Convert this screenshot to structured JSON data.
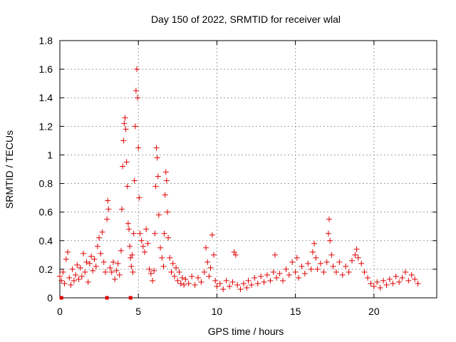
{
  "chart_data": {
    "type": "scatter",
    "title": "Day 150 of 2022, SRMTID for receiver wlal",
    "xlabel": "GPS time / hours",
    "ylabel": "SRMTID / TECUs",
    "xlim": [
      0,
      24
    ],
    "ylim": [
      0,
      1.8
    ],
    "xticks": [
      0,
      5,
      10,
      15,
      20
    ],
    "xtick_labels": [
      "0",
      "5",
      "10",
      "15",
      "20"
    ],
    "yticks": [
      0,
      0.2,
      0.4,
      0.6,
      0.8,
      1,
      1.2,
      1.4,
      1.6,
      1.8
    ],
    "ytick_labels": [
      "0",
      "0.2",
      "0.4",
      "0.6",
      "0.8",
      "1",
      "1.2",
      "1.4",
      "1.6",
      "1.8"
    ],
    "grid": true,
    "marker": "+",
    "color": "#e00000",
    "series": [
      {
        "name": "SRMTID",
        "points": [
          [
            0.0,
            0.15
          ],
          [
            0.1,
            0.12
          ],
          [
            0.2,
            0.18
          ],
          [
            0.3,
            0.1
          ],
          [
            0.4,
            0.27
          ],
          [
            0.5,
            0.32
          ],
          [
            0.6,
            0.14
          ],
          [
            0.7,
            0.09
          ],
          [
            0.8,
            0.2
          ],
          [
            0.9,
            0.12
          ],
          [
            1.0,
            0.16
          ],
          [
            1.1,
            0.23
          ],
          [
            1.2,
            0.13
          ],
          [
            1.3,
            0.21
          ],
          [
            1.4,
            0.15
          ],
          [
            1.5,
            0.31
          ],
          [
            1.6,
            0.18
          ],
          [
            1.7,
            0.25
          ],
          [
            1.8,
            0.11
          ],
          [
            1.9,
            0.24
          ],
          [
            2.0,
            0.29
          ],
          [
            2.1,
            0.19
          ],
          [
            2.2,
            0.27
          ],
          [
            2.3,
            0.22
          ],
          [
            2.4,
            0.36
          ],
          [
            2.5,
            0.42
          ],
          [
            2.6,
            0.31
          ],
          [
            2.7,
            0.46
          ],
          [
            2.8,
            0.25
          ],
          [
            2.9,
            0.18
          ],
          [
            3.0,
            0.55
          ],
          [
            3.05,
            0.68
          ],
          [
            3.1,
            0.62
          ],
          [
            3.2,
            0.21
          ],
          [
            3.3,
            0.18
          ],
          [
            3.4,
            0.25
          ],
          [
            3.5,
            0.13
          ],
          [
            3.6,
            0.19
          ],
          [
            3.7,
            0.24
          ],
          [
            3.8,
            0.16
          ],
          [
            3.9,
            0.33
          ],
          [
            3.95,
            0.62
          ],
          [
            4.0,
            0.92
          ],
          [
            4.05,
            1.1
          ],
          [
            4.1,
            1.22
          ],
          [
            4.15,
            1.26
          ],
          [
            4.2,
            1.18
          ],
          [
            4.25,
            0.95
          ],
          [
            4.3,
            0.78
          ],
          [
            4.35,
            0.52
          ],
          [
            4.4,
            0.48
          ],
          [
            4.45,
            0.36
          ],
          [
            4.5,
            0.28
          ],
          [
            4.55,
            0.22
          ],
          [
            4.6,
            0.3
          ],
          [
            4.65,
            0.18
          ],
          [
            4.7,
            0.45
          ],
          [
            4.75,
            0.82
          ],
          [
            4.8,
            1.2
          ],
          [
            4.85,
            1.45
          ],
          [
            4.9,
            1.6
          ],
          [
            4.95,
            1.4
          ],
          [
            5.0,
            1.05
          ],
          [
            5.05,
            0.7
          ],
          [
            5.1,
            0.45
          ],
          [
            5.2,
            0.4
          ],
          [
            5.3,
            0.36
          ],
          [
            5.4,
            0.32
          ],
          [
            5.5,
            0.48
          ],
          [
            5.6,
            0.38
          ],
          [
            5.7,
            0.2
          ],
          [
            5.8,
            0.17
          ],
          [
            5.9,
            0.12
          ],
          [
            6.0,
            0.19
          ],
          [
            6.05,
            0.45
          ],
          [
            6.1,
            0.78
          ],
          [
            6.15,
            1.05
          ],
          [
            6.2,
            0.98
          ],
          [
            6.25,
            0.85
          ],
          [
            6.3,
            0.58
          ],
          [
            6.4,
            0.35
          ],
          [
            6.5,
            0.28
          ],
          [
            6.6,
            0.22
          ],
          [
            6.65,
            0.45
          ],
          [
            6.7,
            0.72
          ],
          [
            6.75,
            0.88
          ],
          [
            6.8,
            0.82
          ],
          [
            6.85,
            0.6
          ],
          [
            6.9,
            0.42
          ],
          [
            7.0,
            0.28
          ],
          [
            7.1,
            0.18
          ],
          [
            7.2,
            0.24
          ],
          [
            7.3,
            0.15
          ],
          [
            7.4,
            0.21
          ],
          [
            7.5,
            0.12
          ],
          [
            7.6,
            0.18
          ],
          [
            7.7,
            0.1
          ],
          [
            7.8,
            0.14
          ],
          [
            7.9,
            0.09
          ],
          [
            8.0,
            0.13
          ],
          [
            8.2,
            0.1
          ],
          [
            8.4,
            0.15
          ],
          [
            8.6,
            0.09
          ],
          [
            8.8,
            0.14
          ],
          [
            9.0,
            0.11
          ],
          [
            9.2,
            0.18
          ],
          [
            9.3,
            0.35
          ],
          [
            9.4,
            0.25
          ],
          [
            9.5,
            0.15
          ],
          [
            9.6,
            0.21
          ],
          [
            9.7,
            0.44
          ],
          [
            9.8,
            0.3
          ],
          [
            9.9,
            0.12
          ],
          [
            10.0,
            0.08
          ],
          [
            10.2,
            0.1
          ],
          [
            10.4,
            0.06
          ],
          [
            10.6,
            0.12
          ],
          [
            10.8,
            0.08
          ],
          [
            11.0,
            0.11
          ],
          [
            11.1,
            0.32
          ],
          [
            11.2,
            0.3
          ],
          [
            11.3,
            0.09
          ],
          [
            11.5,
            0.06
          ],
          [
            11.7,
            0.1
          ],
          [
            11.9,
            0.07
          ],
          [
            12.0,
            0.12
          ],
          [
            12.2,
            0.09
          ],
          [
            12.4,
            0.14
          ],
          [
            12.6,
            0.1
          ],
          [
            12.8,
            0.15
          ],
          [
            13.0,
            0.11
          ],
          [
            13.2,
            0.16
          ],
          [
            13.4,
            0.12
          ],
          [
            13.6,
            0.18
          ],
          [
            13.7,
            0.3
          ],
          [
            13.8,
            0.14
          ],
          [
            14.0,
            0.17
          ],
          [
            14.2,
            0.12
          ],
          [
            14.4,
            0.2
          ],
          [
            14.6,
            0.16
          ],
          [
            14.8,
            0.25
          ],
          [
            15.0,
            0.18
          ],
          [
            15.1,
            0.28
          ],
          [
            15.2,
            0.14
          ],
          [
            15.4,
            0.22
          ],
          [
            15.6,
            0.17
          ],
          [
            15.8,
            0.24
          ],
          [
            16.0,
            0.2
          ],
          [
            16.1,
            0.32
          ],
          [
            16.2,
            0.38
          ],
          [
            16.3,
            0.28
          ],
          [
            16.4,
            0.2
          ],
          [
            16.6,
            0.24
          ],
          [
            16.8,
            0.18
          ],
          [
            17.0,
            0.25
          ],
          [
            17.1,
            0.45
          ],
          [
            17.15,
            0.55
          ],
          [
            17.2,
            0.4
          ],
          [
            17.3,
            0.3
          ],
          [
            17.4,
            0.22
          ],
          [
            17.6,
            0.18
          ],
          [
            17.8,
            0.25
          ],
          [
            18.0,
            0.16
          ],
          [
            18.2,
            0.22
          ],
          [
            18.4,
            0.18
          ],
          [
            18.6,
            0.26
          ],
          [
            18.8,
            0.3
          ],
          [
            18.9,
            0.34
          ],
          [
            19.0,
            0.28
          ],
          [
            19.2,
            0.24
          ],
          [
            19.4,
            0.18
          ],
          [
            19.6,
            0.14
          ],
          [
            19.8,
            0.1
          ],
          [
            20.0,
            0.08
          ],
          [
            20.2,
            0.11
          ],
          [
            20.4,
            0.07
          ],
          [
            20.6,
            0.12
          ],
          [
            20.8,
            0.09
          ],
          [
            21.0,
            0.13
          ],
          [
            21.2,
            0.1
          ],
          [
            21.4,
            0.15
          ],
          [
            21.6,
            0.11
          ],
          [
            21.8,
            0.14
          ],
          [
            22.0,
            0.18
          ],
          [
            22.2,
            0.12
          ],
          [
            22.4,
            0.16
          ],
          [
            22.6,
            0.13
          ],
          [
            22.8,
            0.1
          ]
        ]
      }
    ],
    "lock_markers_x": [
      0.1,
      3.0,
      4.5
    ]
  }
}
